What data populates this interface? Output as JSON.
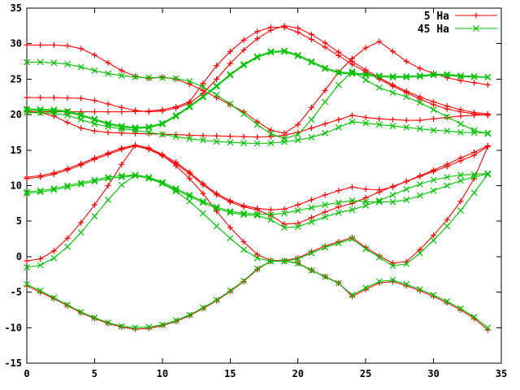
{
  "window": {
    "background": "#ffffff"
  },
  "chart_data": {
    "type": "line",
    "title": "",
    "xlabel": "",
    "ylabel": "",
    "xlim": [
      0,
      35
    ],
    "ylim": [
      -15,
      35
    ],
    "xticks": [
      0,
      5,
      10,
      15,
      20,
      25,
      30,
      35
    ],
    "yticks": [
      -15,
      -10,
      -5,
      0,
      5,
      10,
      15,
      20,
      25,
      30,
      35
    ],
    "grid": false,
    "legend_position": "top-right-inside",
    "legend": [
      {
        "label": "5 Ha",
        "color": "#ff0000",
        "marker": "plus"
      },
      {
        "label": "45 Ha",
        "color": "#00c000",
        "marker": "cross"
      }
    ],
    "x": [
      0,
      1,
      2,
      3,
      4,
      5,
      6,
      7,
      8,
      9,
      10,
      11,
      12,
      13,
      14,
      15,
      16,
      17,
      18,
      19,
      20,
      21,
      22,
      23,
      24,
      25,
      26,
      27,
      28,
      29,
      30,
      31,
      32,
      33,
      34
    ],
    "series": [
      {
        "name": "5Ha-band-1",
        "legend": "5 Ha",
        "color": "#ff0000",
        "marker": "plus",
        "values": [
          -4.1,
          -5.0,
          -5.9,
          -6.9,
          -7.9,
          -8.7,
          -9.4,
          -9.9,
          -10.2,
          -10.1,
          -9.7,
          -9.1,
          -8.3,
          -7.3,
          -6.2,
          -4.9,
          -3.5,
          -1.8,
          -0.6,
          -0.6,
          -0.9,
          -1.9,
          -2.8,
          -3.7,
          -5.6,
          -4.6,
          -3.7,
          -3.5,
          -4.1,
          -4.8,
          -5.6,
          -6.5,
          -7.5,
          -8.7,
          -10.3
        ]
      },
      {
        "name": "5Ha-band-2",
        "legend": "5 Ha",
        "color": "#ff0000",
        "marker": "plus",
        "values": [
          -0.6,
          -0.3,
          0.8,
          2.6,
          4.8,
          7.3,
          10.0,
          13.0,
          15.7,
          15.3,
          14.3,
          12.8,
          11.0,
          8.9,
          6.4,
          4.1,
          2.1,
          0.3,
          -0.55,
          -0.55,
          -0.2,
          0.7,
          1.5,
          2.1,
          2.7,
          1.3,
          0.1,
          -0.9,
          -0.7,
          1.0,
          3.0,
          5.2,
          7.8,
          11.0,
          15.5
        ]
      },
      {
        "name": "5Ha-band-3",
        "legend": "5 Ha",
        "color": "#ff0000",
        "marker": "plus",
        "values": [
          11.2,
          11.4,
          11.8,
          12.4,
          13.1,
          13.9,
          14.6,
          15.3,
          15.7,
          15.3,
          14.4,
          13.3,
          11.9,
          10.3,
          8.9,
          7.9,
          7.2,
          6.8,
          6.6,
          6.7,
          7.3,
          8.0,
          8.7,
          9.3,
          9.8,
          9.5,
          9.4,
          9.8,
          10.6,
          11.4,
          12.2,
          13.0,
          13.9,
          14.7,
          15.6
        ]
      },
      {
        "name": "5Ha-band-4",
        "legend": "5 Ha",
        "color": "#ff0000",
        "marker": "plus",
        "values": [
          11.0,
          11.2,
          11.6,
          12.2,
          12.9,
          13.7,
          14.4,
          15.1,
          15.6,
          15.1,
          14.2,
          13.1,
          11.7,
          10.1,
          8.7,
          7.7,
          7.0,
          6.6,
          5.8,
          4.6,
          4.7,
          5.5,
          6.3,
          7.0,
          7.5,
          8.3,
          9.1,
          9.9,
          10.6,
          11.3,
          12.0,
          12.7,
          13.5,
          14.3,
          15.5
        ]
      },
      {
        "name": "5Ha-band-5",
        "legend": "5 Ha",
        "color": "#ff0000",
        "marker": "plus",
        "values": [
          20.5,
          20.3,
          19.8,
          18.9,
          18.1,
          17.7,
          17.5,
          17.4,
          17.35,
          17.3,
          17.25,
          17.2,
          17.1,
          17.05,
          17.0,
          16.95,
          16.9,
          16.85,
          16.9,
          17.1,
          17.5,
          18.1,
          18.7,
          19.3,
          19.9,
          19.6,
          19.4,
          19.3,
          19.2,
          19.2,
          19.4,
          19.6,
          19.8,
          19.9,
          20.0
        ]
      },
      {
        "name": "5Ha-band-6",
        "legend": "5 Ha",
        "color": "#ff0000",
        "marker": "plus",
        "values": [
          20.4,
          20.4,
          20.4,
          20.4,
          20.4,
          20.4,
          20.4,
          20.4,
          20.45,
          20.5,
          20.7,
          21.1,
          21.8,
          24.4,
          26.9,
          28.9,
          30.5,
          31.7,
          32.3,
          32.3,
          31.6,
          30.6,
          29.5,
          28.3,
          27.1,
          26.0,
          25.0,
          24.0,
          23.1,
          22.2,
          21.4,
          20.8,
          20.4,
          20.1,
          19.9
        ]
      },
      {
        "name": "5Ha-band-7",
        "legend": "5 Ha",
        "color": "#ff0000",
        "marker": "plus",
        "values": [
          29.8,
          29.8,
          29.8,
          29.7,
          29.3,
          28.4,
          27.3,
          26.2,
          25.4,
          25.1,
          25.3,
          25.0,
          24.3,
          23.4,
          22.4,
          21.4,
          20.4,
          19.0,
          17.8,
          17.4,
          18.6,
          21.0,
          23.4,
          26.0,
          27.9,
          29.4,
          30.3,
          28.9,
          27.5,
          26.5,
          25.8,
          25.2,
          24.8,
          24.5,
          24.2
        ]
      },
      {
        "name": "5Ha-band-8",
        "legend": "5 Ha",
        "color": "#ff0000",
        "marker": "plus",
        "values": [
          22.4,
          22.4,
          22.4,
          22.35,
          22.3,
          22.0,
          21.5,
          21.0,
          20.6,
          20.4,
          20.5,
          20.9,
          21.6,
          23.0,
          25.0,
          27.2,
          29.1,
          30.7,
          31.9,
          32.5,
          32.2,
          31.3,
          30.1,
          28.8,
          27.5,
          26.3,
          25.2,
          24.2,
          23.3,
          22.5,
          21.8,
          21.2,
          20.7,
          20.3,
          20.1
        ]
      },
      {
        "name": "45Ha-band-1",
        "legend": "45 Ha",
        "color": "#00c000",
        "marker": "cross",
        "values": [
          -3.9,
          -4.8,
          -5.8,
          -6.8,
          -7.8,
          -8.6,
          -9.3,
          -9.8,
          -10.0,
          -9.9,
          -9.6,
          -9.0,
          -8.2,
          -7.2,
          -6.1,
          -4.8,
          -3.4,
          -1.7,
          -0.62,
          -0.62,
          -0.95,
          -1.95,
          -2.85,
          -3.75,
          -5.4,
          -4.4,
          -3.5,
          -3.3,
          -3.9,
          -4.6,
          -5.4,
          -6.3,
          -7.3,
          -8.5,
          -10.0
        ]
      },
      {
        "name": "45Ha-band-2",
        "legend": "45 Ha",
        "color": "#00c000",
        "marker": "cross",
        "values": [
          -1.5,
          -1.2,
          -0.2,
          1.4,
          3.4,
          5.7,
          8.0,
          10.1,
          11.5,
          11.2,
          10.3,
          9.2,
          7.8,
          6.1,
          4.3,
          2.6,
          1.0,
          -0.2,
          -0.65,
          -0.65,
          -0.3,
          0.5,
          1.3,
          1.9,
          2.5,
          1.1,
          -0.1,
          -1.3,
          -1.0,
          0.5,
          2.3,
          4.3,
          6.5,
          9.0,
          11.6
        ]
      },
      {
        "name": "45Ha-band-3",
        "legend": "45 Ha",
        "color": "#00c000",
        "marker": "cross",
        "values": [
          9.1,
          9.3,
          9.6,
          10.0,
          10.4,
          10.8,
          11.2,
          11.4,
          11.5,
          11.2,
          10.5,
          9.6,
          8.7,
          7.8,
          7.0,
          6.4,
          6.1,
          6.0,
          5.95,
          6.1,
          6.5,
          6.9,
          7.3,
          7.6,
          7.9,
          7.75,
          7.7,
          7.7,
          8.0,
          8.6,
          9.3,
          10.0,
          10.7,
          11.2,
          11.7
        ]
      },
      {
        "name": "45Ha-band-4",
        "legend": "45 Ha",
        "color": "#00c000",
        "marker": "cross",
        "values": [
          8.9,
          9.1,
          9.4,
          9.8,
          10.2,
          10.6,
          11.0,
          11.2,
          11.4,
          11.0,
          10.3,
          9.4,
          8.5,
          7.6,
          6.8,
          6.2,
          5.9,
          5.8,
          5.2,
          4.1,
          4.2,
          4.9,
          5.6,
          6.2,
          6.6,
          7.2,
          7.9,
          8.7,
          9.5,
          10.2,
          10.8,
          11.2,
          11.5,
          11.6,
          11.7
        ]
      },
      {
        "name": "45Ha-band-5",
        "legend": "45 Ha",
        "color": "#00c000",
        "marker": "cross",
        "values": [
          20.3,
          20.25,
          20.2,
          19.9,
          19.3,
          18.7,
          18.3,
          18.0,
          17.8,
          17.5,
          17.2,
          16.9,
          16.6,
          16.4,
          16.2,
          16.1,
          16.0,
          15.95,
          16.0,
          16.15,
          16.4,
          16.8,
          17.4,
          18.2,
          19.0,
          18.8,
          18.6,
          18.4,
          18.2,
          18.0,
          17.8,
          17.7,
          17.5,
          17.45,
          17.4
        ]
      },
      {
        "name": "45Ha-band-6",
        "legend": "45 Ha",
        "color": "#00c000",
        "marker": "cross",
        "values": [
          20.8,
          20.75,
          20.7,
          20.5,
          20.0,
          19.4,
          18.8,
          18.4,
          18.2,
          18.3,
          18.8,
          19.9,
          21.2,
          22.6,
          24.1,
          25.7,
          27.1,
          28.2,
          28.9,
          29.0,
          28.4,
          27.5,
          26.6,
          26.0,
          25.9,
          25.7,
          25.5,
          25.4,
          25.4,
          25.5,
          25.7,
          25.7,
          25.5,
          25.4,
          25.3
        ]
      },
      {
        "name": "45Ha-band-7",
        "legend": "45 Ha",
        "color": "#00c000",
        "marker": "cross",
        "values": [
          20.65,
          20.6,
          20.55,
          20.35,
          19.85,
          19.25,
          18.65,
          18.25,
          18.05,
          18.15,
          18.65,
          19.75,
          21.05,
          22.45,
          23.95,
          25.55,
          26.95,
          28.05,
          28.75,
          28.85,
          28.25,
          27.35,
          26.45,
          25.85,
          25.75,
          25.55,
          25.35,
          25.25,
          25.25,
          25.35,
          25.55,
          25.55,
          25.35,
          25.3,
          25.25
        ]
      },
      {
        "name": "45Ha-band-8",
        "legend": "45 Ha",
        "color": "#00c000",
        "marker": "cross",
        "values": [
          27.4,
          27.4,
          27.3,
          27.1,
          26.7,
          26.2,
          25.8,
          25.5,
          25.3,
          25.2,
          25.2,
          25.1,
          24.7,
          23.9,
          22.8,
          21.5,
          20.1,
          18.6,
          17.3,
          16.6,
          17.2,
          19.3,
          21.8,
          24.2,
          26.1,
          24.9,
          23.8,
          23.1,
          22.5,
          21.7,
          20.7,
          19.7,
          18.7,
          17.8,
          17.3
        ]
      }
    ]
  }
}
